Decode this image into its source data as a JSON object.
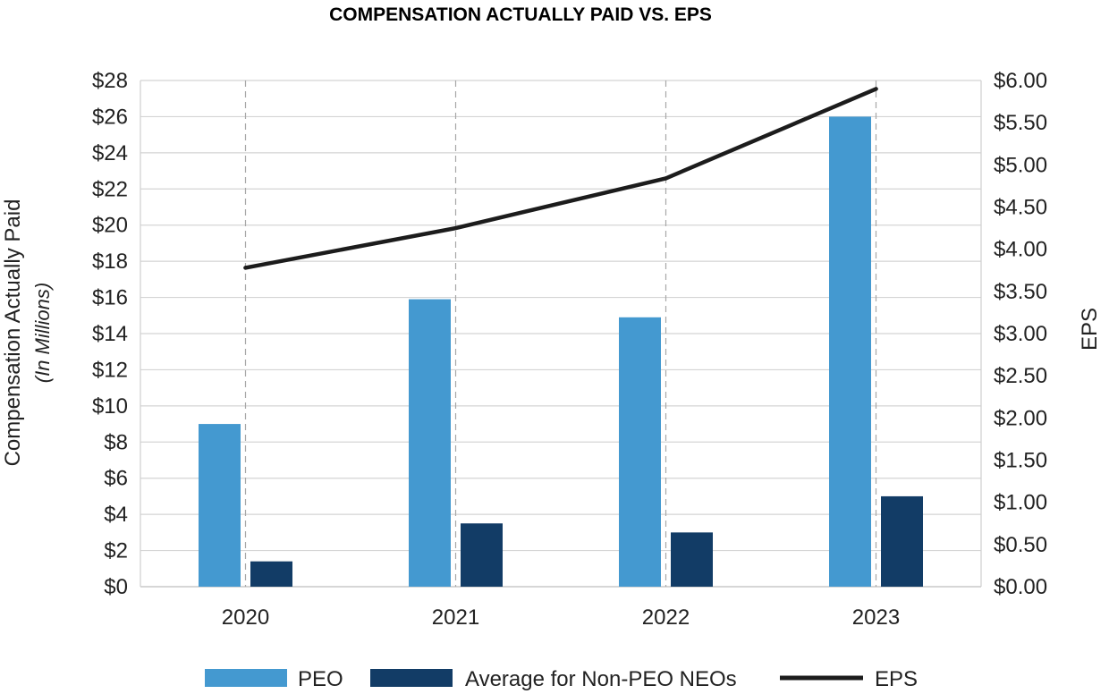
{
  "chart_data": {
    "type": "bar",
    "title": "COMPENSATION ACTUALLY PAID VS. EPS",
    "categories": [
      "2020",
      "2021",
      "2022",
      "2023"
    ],
    "ylabel": "Compensation Actually Paid",
    "ylabel_sub": "(In Millions)",
    "y2label": "EPS",
    "ylim": [
      0,
      28
    ],
    "y2lim": [
      0,
      6
    ],
    "yticks": [
      "$0",
      "$2",
      "$4",
      "$6",
      "$8",
      "$10",
      "$12",
      "$14",
      "$16",
      "$18",
      "$20",
      "$22",
      "$24",
      "$26",
      "$28"
    ],
    "y2ticks": [
      "$0.00",
      "$0.50",
      "$1.00",
      "$1.50",
      "$2.00",
      "$2.50",
      "$3.00",
      "$3.50",
      "$4.00",
      "$4.50",
      "$5.00",
      "$5.50",
      "$6.00"
    ],
    "series": [
      {
        "name": "PEO",
        "type": "bar",
        "axis": "left",
        "color": "#4499d0",
        "values": [
          9.0,
          15.9,
          14.9,
          26.0
        ]
      },
      {
        "name": "Average for Non-PEO NEOs",
        "type": "bar",
        "axis": "left",
        "color": "#123c66",
        "values": [
          1.4,
          3.5,
          3.0,
          5.0
        ]
      },
      {
        "name": "EPS",
        "type": "line",
        "axis": "right",
        "color": "#1c1c1c",
        "values": [
          3.78,
          4.25,
          4.84,
          5.9
        ]
      }
    ],
    "grid": true,
    "legend": "bottom"
  }
}
